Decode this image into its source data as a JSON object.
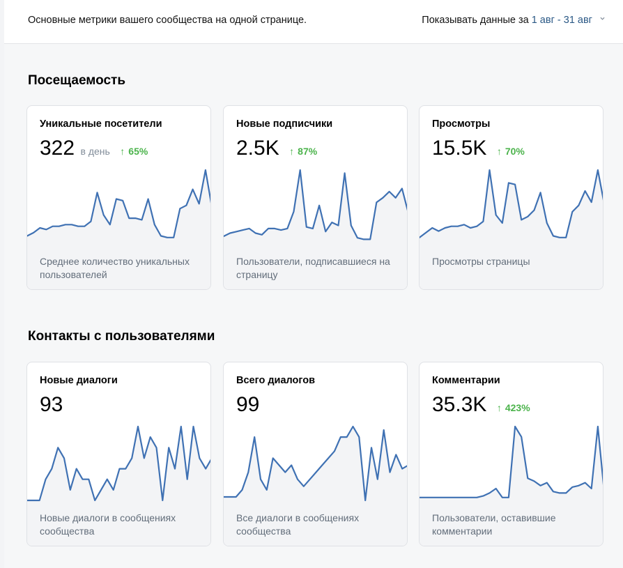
{
  "header": {
    "description": "Основные метрики вашего сообщества на одной странице.",
    "period_label": "Показывать данные за",
    "period_value": "1 авг - 31 авг"
  },
  "sections": [
    {
      "title": "Посещаемость"
    },
    {
      "title": "Контакты с пользователями"
    }
  ],
  "cards": [
    {
      "title": "Уникальные посетители",
      "value": "322",
      "unit": "в день",
      "delta": "65%",
      "description": "Среднее количество уникальных пользователей",
      "series": [
        5,
        7,
        10,
        9,
        11,
        11,
        12,
        12,
        11,
        11,
        14,
        32,
        18,
        12,
        28,
        27,
        16,
        16,
        15,
        28,
        12,
        5,
        4,
        4,
        22,
        24,
        34,
        25,
        46,
        23
      ]
    },
    {
      "title": "Новые подписчики",
      "value": "2.5K",
      "unit": "",
      "delta": "87%",
      "description": "Пользователи, подписавшиеся на страницу",
      "series": [
        5,
        7,
        8,
        9,
        10,
        7,
        6,
        10,
        10,
        9,
        10,
        21,
        48,
        11,
        10,
        25,
        8,
        14,
        12,
        46,
        12,
        4,
        3,
        3,
        27,
        30,
        34,
        30,
        36,
        20
      ]
    },
    {
      "title": "Просмотры",
      "value": "15.5K",
      "unit": "",
      "delta": "70%",
      "description": "Просмотры страницы",
      "series": [
        4,
        7,
        10,
        8,
        10,
        11,
        11,
        12,
        10,
        11,
        14,
        46,
        18,
        13,
        38,
        37,
        15,
        17,
        21,
        32,
        13,
        5,
        4,
        4,
        20,
        24,
        33,
        26,
        46,
        25
      ]
    },
    {
      "title": "Новые диалоги",
      "value": "93",
      "unit": "",
      "delta": "",
      "description": "Новые диалоги в сообщениях сообщества",
      "series": [
        0,
        0,
        0,
        4,
        6,
        10,
        8,
        2,
        6,
        4,
        4,
        0,
        2,
        4,
        2,
        6,
        6,
        8,
        14,
        8,
        12,
        10,
        0,
        10,
        6,
        14,
        4,
        14,
        8,
        6,
        8
      ]
    },
    {
      "title": "Всего диалогов",
      "value": "99",
      "unit": "",
      "delta": "",
      "description": "Все диалоги в сообщениях сообщества",
      "series": [
        1,
        1,
        1,
        3,
        8,
        18,
        6,
        3,
        12,
        10,
        8,
        10,
        6,
        4,
        6,
        8,
        10,
        12,
        14,
        18,
        18,
        21,
        18,
        0,
        15,
        6,
        20,
        8,
        13,
        9,
        10
      ]
    },
    {
      "title": "Комментарии",
      "value": "35.3K",
      "unit": "",
      "delta": "423%",
      "description": "Пользователи, оставившие комментарии",
      "series": [
        2,
        2,
        2,
        2,
        2,
        2,
        2,
        2,
        2,
        2,
        3,
        5,
        8,
        2,
        2,
        50,
        43,
        15,
        13,
        10,
        12,
        6,
        5,
        5,
        9,
        10,
        12,
        8,
        50,
        6
      ]
    }
  ],
  "icons": {
    "delta": "arrow-up-icon",
    "period": "chevron-down-icon"
  },
  "colors": {
    "accent": "#2a5885",
    "positive": "#4bb34b",
    "line": "#3f71b3"
  }
}
